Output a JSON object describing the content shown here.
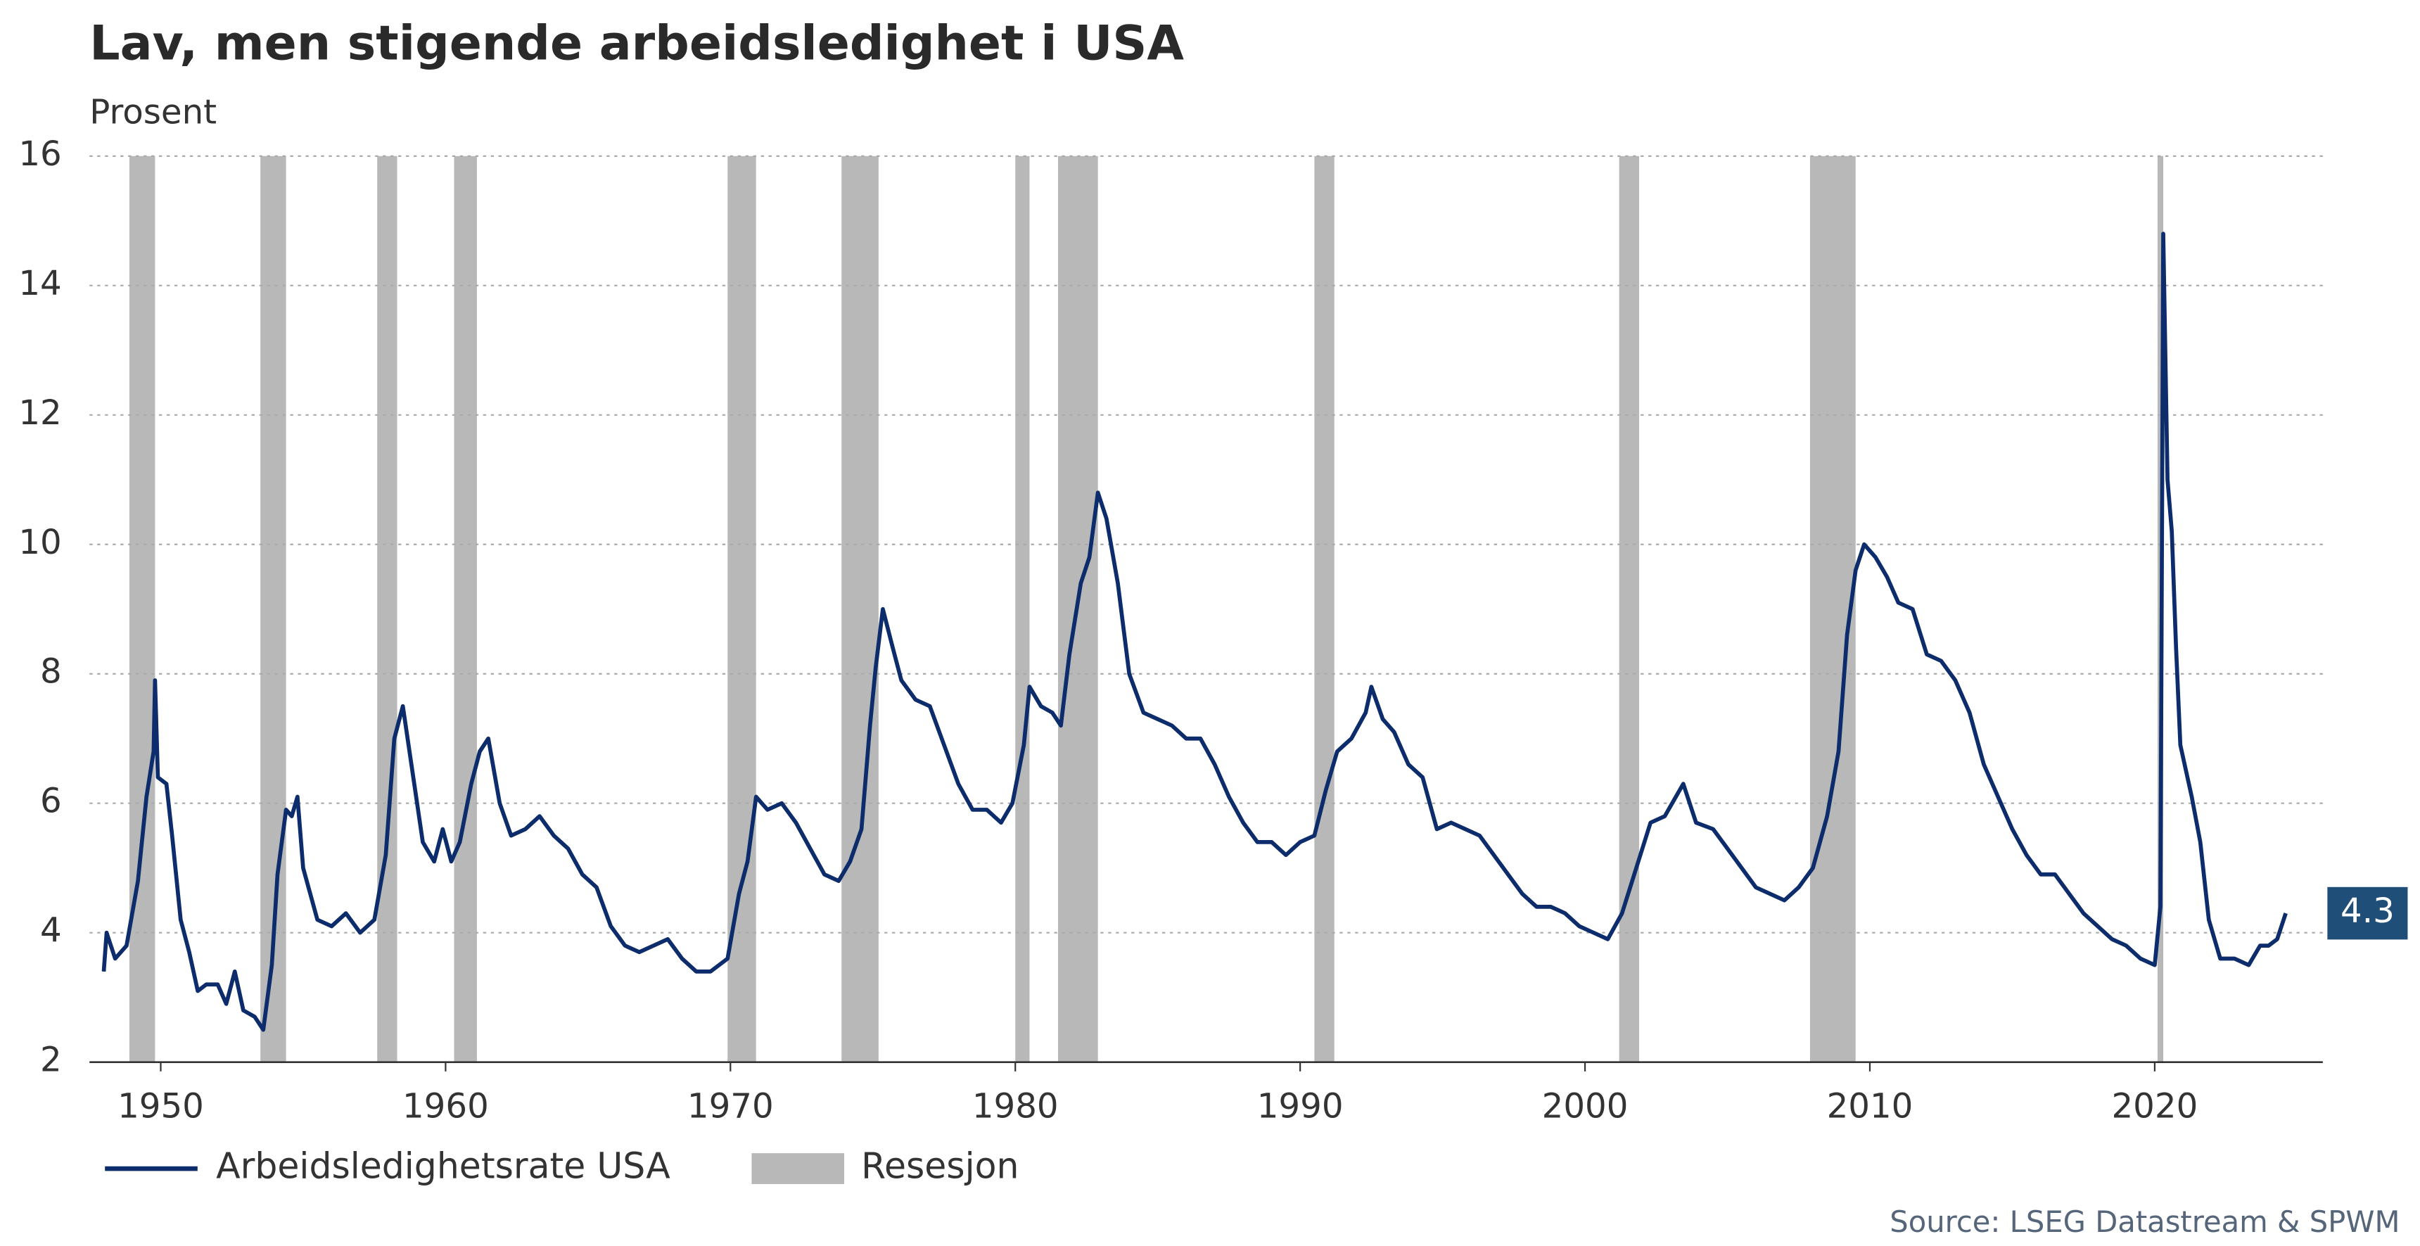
{
  "chart_data": {
    "type": "line",
    "title": "Lav, men stigende arbeidsledighet i USA",
    "subtitle": "Prosent",
    "source": "Source: LSEG Datastream & SPWM",
    "xlim": [
      1947.5,
      2025.9
    ],
    "ylim": [
      2,
      16
    ],
    "xticks": [
      1950,
      1960,
      1970,
      1980,
      1990,
      2000,
      2010,
      2020
    ],
    "yticks": [
      2,
      4,
      6,
      8,
      10,
      12,
      14,
      16
    ],
    "grid": true,
    "recessions": {
      "name": "Resesjon",
      "color": "#b8b8b8",
      "ranges": [
        [
          1948.9,
          1949.8
        ],
        [
          1953.5,
          1954.4
        ],
        [
          1957.6,
          1958.3
        ],
        [
          1960.3,
          1961.1
        ],
        [
          1969.9,
          1970.9
        ],
        [
          1973.9,
          1975.2
        ],
        [
          1980.0,
          1980.5
        ],
        [
          1981.5,
          1982.9
        ],
        [
          1990.5,
          1991.2
        ],
        [
          2001.2,
          2001.9
        ],
        [
          2007.9,
          2009.5
        ],
        [
          2020.1,
          2020.3
        ]
      ]
    },
    "series": [
      {
        "name": "Arbeidsledighetsrate USA",
        "color": "#0d2c6c",
        "x": [
          1948.0,
          1948.1,
          1948.4,
          1948.8,
          1949.2,
          1949.5,
          1949.75,
          1949.8,
          1949.9,
          1950.2,
          1950.4,
          1950.7,
          1951.0,
          1951.3,
          1951.6,
          1952.0,
          1952.3,
          1952.6,
          1952.9,
          1953.3,
          1953.6,
          1953.9,
          1954.1,
          1954.4,
          1954.6,
          1954.8,
          1955.0,
          1955.5,
          1956.0,
          1956.5,
          1957.0,
          1957.5,
          1957.9,
          1958.2,
          1958.5,
          1958.8,
          1959.2,
          1959.6,
          1959.9,
          1960.2,
          1960.5,
          1960.9,
          1961.2,
          1961.5,
          1961.9,
          1962.3,
          1962.8,
          1963.3,
          1963.8,
          1964.3,
          1964.8,
          1965.3,
          1965.8,
          1966.3,
          1966.8,
          1967.3,
          1967.8,
          1968.3,
          1968.8,
          1969.3,
          1969.9,
          1970.3,
          1970.6,
          1970.9,
          1971.3,
          1971.8,
          1972.3,
          1972.8,
          1973.3,
          1973.8,
          1974.2,
          1974.6,
          1974.9,
          1975.1,
          1975.35,
          1975.7,
          1976.0,
          1976.5,
          1977.0,
          1977.5,
          1978.0,
          1978.5,
          1979.0,
          1979.5,
          1979.9,
          1980.3,
          1980.5,
          1980.9,
          1981.3,
          1981.6,
          1981.9,
          1982.3,
          1982.6,
          1982.9,
          1983.2,
          1983.6,
          1984.0,
          1984.5,
          1985.0,
          1985.5,
          1986.0,
          1986.5,
          1987.0,
          1987.5,
          1988.0,
          1988.5,
          1989.0,
          1989.5,
          1990.0,
          1990.5,
          1990.9,
          1991.3,
          1991.8,
          1992.3,
          1992.5,
          1992.9,
          1993.3,
          1993.8,
          1994.3,
          1994.8,
          1995.3,
          1995.8,
          1996.3,
          1996.8,
          1997.3,
          1997.8,
          1998.3,
          1998.8,
          1999.3,
          1999.8,
          2000.3,
          2000.8,
          2001.3,
          2001.8,
          2002.3,
          2002.8,
          2003.45,
          2003.9,
          2004.5,
          2005.0,
          2005.5,
          2006.0,
          2006.5,
          2007.0,
          2007.5,
          2008.0,
          2008.5,
          2008.9,
          2009.2,
          2009.5,
          2009.8,
          2010.2,
          2010.6,
          2011.0,
          2011.5,
          2012.0,
          2012.5,
          2013.0,
          2013.5,
          2014.0,
          2014.5,
          2015.0,
          2015.5,
          2016.0,
          2016.5,
          2017.0,
          2017.5,
          2018.0,
          2018.5,
          2019.0,
          2019.5,
          2020.0,
          2020.2,
          2020.3,
          2020.45,
          2020.6,
          2020.75,
          2020.9,
          2021.3,
          2021.6,
          2021.9,
          2022.3,
          2022.8,
          2023.3,
          2023.7,
          2024.0,
          2024.3,
          2024.6
        ],
        "values": [
          3.4,
          4.0,
          3.6,
          3.8,
          4.8,
          6.1,
          6.8,
          7.9,
          6.4,
          6.3,
          5.5,
          4.2,
          3.7,
          3.1,
          3.2,
          3.2,
          2.9,
          3.4,
          2.8,
          2.7,
          2.5,
          3.5,
          4.9,
          5.9,
          5.8,
          6.1,
          5.0,
          4.2,
          4.1,
          4.3,
          4.0,
          4.2,
          5.2,
          7.0,
          7.5,
          6.6,
          5.4,
          5.1,
          5.6,
          5.1,
          5.4,
          6.3,
          6.8,
          7.0,
          6.0,
          5.5,
          5.6,
          5.8,
          5.5,
          5.3,
          4.9,
          4.7,
          4.1,
          3.8,
          3.7,
          3.8,
          3.9,
          3.6,
          3.4,
          3.4,
          3.6,
          4.6,
          5.1,
          6.1,
          5.9,
          6.0,
          5.7,
          5.3,
          4.9,
          4.8,
          5.1,
          5.6,
          7.2,
          8.1,
          9.0,
          8.4,
          7.9,
          7.6,
          7.5,
          6.9,
          6.3,
          5.9,
          5.9,
          5.7,
          6.0,
          6.9,
          7.8,
          7.5,
          7.4,
          7.2,
          8.3,
          9.4,
          9.8,
          10.8,
          10.4,
          9.4,
          8.0,
          7.4,
          7.3,
          7.2,
          7.0,
          7.0,
          6.6,
          6.1,
          5.7,
          5.4,
          5.4,
          5.2,
          5.4,
          5.5,
          6.2,
          6.8,
          7.0,
          7.4,
          7.8,
          7.3,
          7.1,
          6.6,
          6.4,
          5.6,
          5.7,
          5.6,
          5.5,
          5.2,
          4.9,
          4.6,
          4.4,
          4.4,
          4.3,
          4.1,
          4.0,
          3.9,
          4.3,
          5.0,
          5.7,
          5.8,
          6.3,
          5.7,
          5.6,
          5.3,
          5.0,
          4.7,
          4.6,
          4.5,
          4.7,
          5.0,
          5.8,
          6.8,
          8.6,
          9.6,
          10.0,
          9.8,
          9.5,
          9.1,
          9.0,
          8.3,
          8.2,
          7.9,
          7.4,
          6.6,
          6.1,
          5.6,
          5.2,
          4.9,
          4.9,
          4.6,
          4.3,
          4.1,
          3.9,
          3.8,
          3.6,
          3.5,
          4.4,
          14.8,
          11.0,
          10.2,
          8.4,
          6.9,
          6.1,
          5.4,
          4.2,
          3.6,
          3.6,
          3.5,
          3.8,
          3.8,
          3.9,
          4.3
        ]
      }
    ]
  }
}
